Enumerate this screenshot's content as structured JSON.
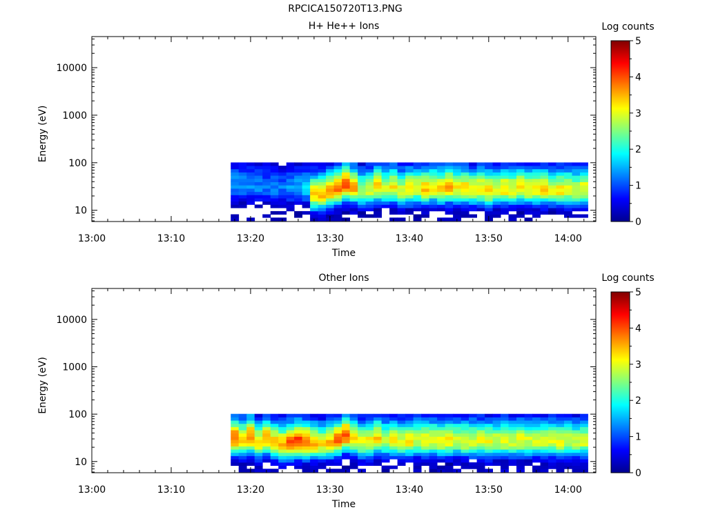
{
  "figure_title": "RPCICA150720T13.PNG",
  "chart_data": [
    {
      "type": "heatmap",
      "title": "H+ He++ Ions",
      "xlabel": "Time",
      "ylabel": "Energy (eV)",
      "x_tick_labels": [
        "13:00",
        "13:10",
        "13:20",
        "13:30",
        "13:40",
        "13:50",
        "14:00"
      ],
      "x_ticks_min": [
        0,
        10,
        20,
        30,
        40,
        50,
        60
      ],
      "x_range_min": [
        0,
        63.5
      ],
      "y_scale": "log",
      "y_tick_labels": [
        "10",
        "100",
        "1000",
        "10000"
      ],
      "y_ticks": [
        10,
        100,
        1000,
        10000
      ],
      "y_range": [
        5.8,
        45000
      ],
      "colorbar": {
        "label": "Log counts",
        "range": [
          0,
          5
        ],
        "tick_labels": [
          "0",
          "1",
          "2",
          "3",
          "4",
          "5"
        ]
      },
      "data_time_range_min": [
        17.5,
        62
      ],
      "time_step_min": 1,
      "energy_bins_eV": [
        6.5,
        7.6,
        8.9,
        10.4,
        12.2,
        14.3,
        16.7,
        19.5,
        22.8,
        26.7,
        31.2,
        36.5,
        42.7,
        50.0,
        58.5,
        68.5,
        80.1,
        93.8
      ],
      "peak_energy_eV": [
        35,
        34,
        33,
        33,
        32,
        31,
        31,
        30,
        30,
        29,
        21,
        22,
        25,
        28,
        35,
        30,
        25,
        27,
        32,
        28,
        30,
        26,
        28,
        29,
        28,
        30,
        28,
        30,
        29,
        28,
        27,
        28,
        26,
        27,
        28,
        27,
        29,
        27,
        28,
        28,
        27,
        26,
        27,
        26,
        27
      ],
      "peak_log_counts": [
        1.4,
        1.3,
        1.4,
        1.3,
        1.2,
        1.3,
        1.2,
        1.3,
        1.4,
        1.6,
        3.3,
        3.5,
        3.6,
        3.7,
        3.9,
        3.5,
        2.8,
        3.0,
        3.4,
        2.8,
        3.2,
        2.9,
        3.3,
        3.0,
        3.4,
        3.2,
        3.3,
        3.5,
        3.1,
        3.3,
        3.0,
        3.2,
        3.4,
        3.0,
        3.3,
        3.1,
        3.3,
        3.1,
        3.2,
        3.3,
        3.0,
        3.2,
        3.1,
        2.9,
        3.1
      ]
    },
    {
      "type": "heatmap",
      "title": "Other Ions",
      "xlabel": "Time",
      "ylabel": "Energy (eV)",
      "x_tick_labels": [
        "13:00",
        "13:10",
        "13:20",
        "13:30",
        "13:40",
        "13:50",
        "14:00"
      ],
      "x_ticks_min": [
        0,
        10,
        20,
        30,
        40,
        50,
        60
      ],
      "x_range_min": [
        0,
        63.5
      ],
      "y_scale": "log",
      "y_tick_labels": [
        "10",
        "100",
        "1000",
        "10000"
      ],
      "y_ticks": [
        10,
        100,
        1000,
        10000
      ],
      "y_range": [
        5.8,
        45000
      ],
      "colorbar": {
        "label": "Log counts",
        "range": [
          0,
          5
        ],
        "tick_labels": [
          "0",
          "1",
          "2",
          "3",
          "4",
          "5"
        ]
      },
      "data_time_range_min": [
        17.5,
        62
      ],
      "time_step_min": 1,
      "energy_bins_eV": [
        6.5,
        7.6,
        8.9,
        10.4,
        12.2,
        14.3,
        16.7,
        19.5,
        22.8,
        26.7,
        31.2,
        36.5,
        42.7,
        50.0,
        58.5,
        68.5,
        80.1,
        93.8
      ],
      "peak_energy_eV": [
        30,
        28,
        32,
        25,
        29,
        24,
        22,
        24,
        26,
        25,
        24,
        23,
        25,
        28,
        34,
        30,
        25,
        27,
        30,
        27,
        28,
        26,
        27,
        28,
        27,
        28,
        27,
        28,
        28,
        27,
        27,
        27,
        26,
        27,
        27,
        27,
        28,
        27,
        27,
        27,
        27,
        26,
        27,
        26,
        27
      ],
      "peak_log_counts": [
        3.9,
        3.3,
        3.8,
        3.2,
        3.6,
        3.4,
        3.5,
        3.9,
        4.1,
        4.0,
        3.5,
        3.2,
        3.4,
        3.8,
        4.0,
        3.4,
        3.0,
        3.1,
        3.3,
        2.8,
        3.1,
        2.9,
        3.2,
        2.9,
        3.1,
        3.0,
        3.1,
        3.2,
        2.9,
        3.1,
        2.9,
        3.0,
        3.1,
        2.9,
        3.1,
        2.9,
        3.1,
        2.9,
        3.0,
        3.1,
        2.9,
        3.0,
        2.9,
        2.8,
        3.0
      ]
    }
  ]
}
